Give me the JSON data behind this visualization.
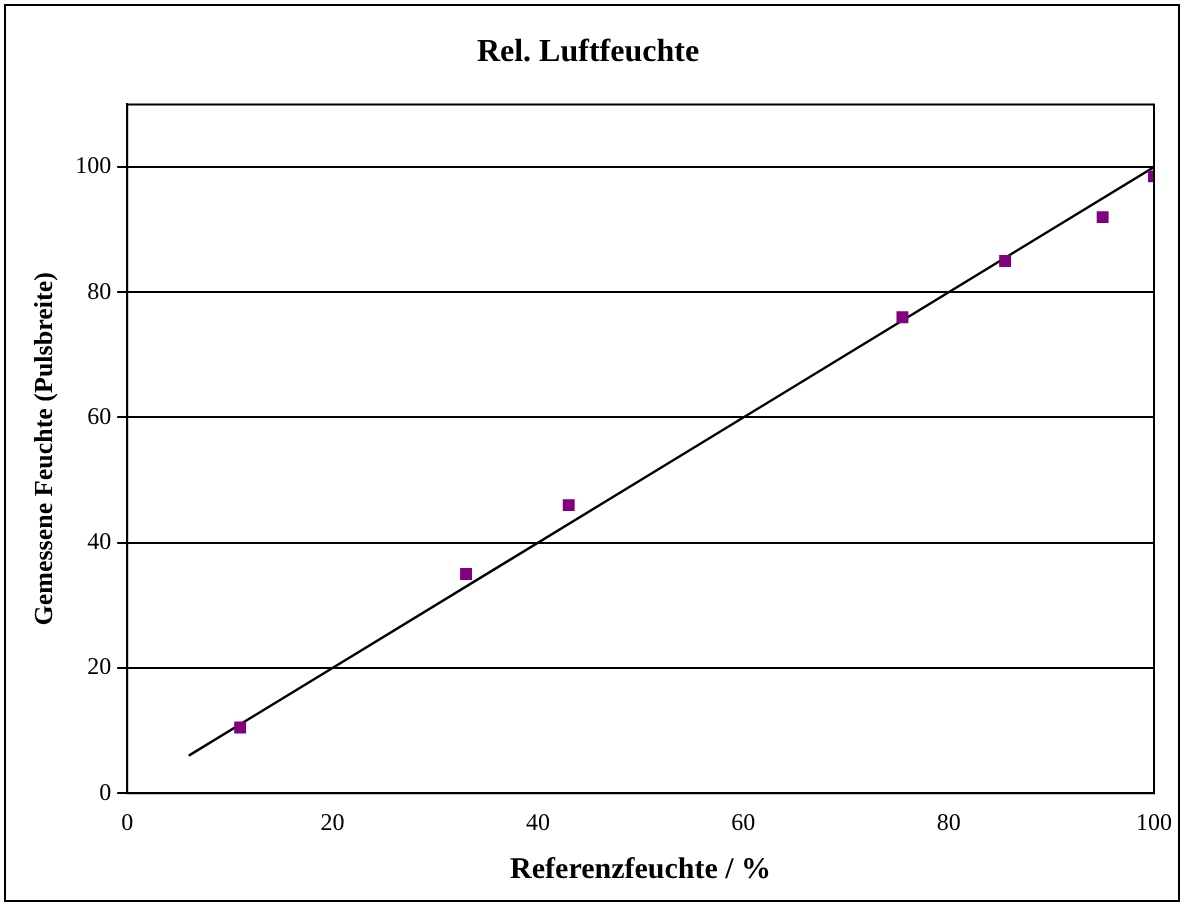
{
  "chart_data": {
    "type": "scatter",
    "title": "Rel. Luftfeuchte",
    "xlabel": "Referenzfeuchte / %",
    "ylabel": "Gemessene Feuchte (Pulsbreite)",
    "xlim": [
      0,
      100
    ],
    "ylim": [
      0,
      110
    ],
    "xticks": [
      0,
      20,
      40,
      60,
      80,
      100
    ],
    "yticks": [
      0,
      20,
      40,
      60,
      80,
      100
    ],
    "grid": "y",
    "legend": false,
    "series": [
      {
        "type": "scatter",
        "marker": "square",
        "color": "#800080",
        "x": [
          11,
          33,
          43,
          75.5,
          85.5,
          95,
          100
        ],
        "values": [
          10.5,
          35,
          46,
          76,
          85,
          92,
          98.5
        ]
      },
      {
        "type": "line",
        "marker": "none",
        "color": "#000000",
        "x": [
          6,
          100
        ],
        "values": [
          6,
          100
        ]
      }
    ]
  }
}
